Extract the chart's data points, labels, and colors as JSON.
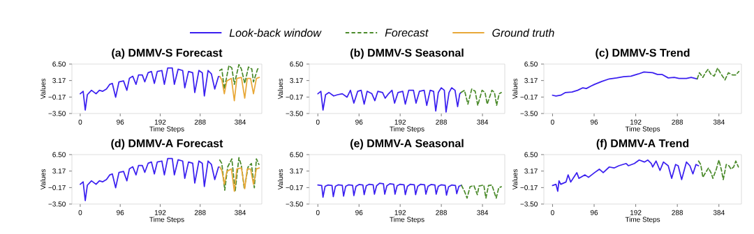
{
  "chart_data": [
    {
      "type": "line",
      "title": "(a) DMMV-S Forecast",
      "xlabel": "Time Steps",
      "ylabel": "Values",
      "legend": "top",
      "xlim": [
        -20,
        436
      ],
      "ylim": [
        -3.5,
        6.5
      ],
      "xticks": [
        0,
        96,
        192,
        288,
        384
      ],
      "yticks": [
        {
          "value": -3.5,
          "label": "−3.50"
        },
        {
          "value": -0.17,
          "label": "−0.17"
        },
        {
          "value": 3.17,
          "label": "3.17"
        },
        {
          "value": 6.5,
          "label": "6.50"
        }
      ],
      "series": [
        {
          "name": "Look-back window",
          "color": "#3a1ff0",
          "line_style": "solid",
          "x": [
            0,
            7,
            12,
            17,
            27,
            38,
            46,
            54,
            63,
            71,
            77,
            85,
            93,
            104,
            112,
            118,
            126,
            134,
            140,
            149,
            155,
            163,
            171,
            178,
            185,
            196,
            202,
            210,
            221,
            226,
            235,
            246,
            251,
            260,
            270,
            275,
            285,
            293,
            298,
            307,
            315,
            323,
            332,
            335
          ],
          "values": [
            0.5,
            1.0,
            -2.8,
            0.3,
            1.2,
            0.5,
            1.2,
            1.0,
            1.45,
            2.4,
            2.6,
            -0.2,
            2.9,
            3.1,
            1.2,
            3.6,
            4.05,
            2.4,
            4.3,
            4.3,
            2.9,
            4.75,
            5.0,
            2.6,
            5.0,
            5.2,
            2.4,
            5.7,
            5.7,
            2.4,
            5.45,
            5.2,
            1.7,
            5.0,
            4.75,
            0.75,
            5.2,
            4.75,
            0.05,
            5.2,
            4.5,
            1.45,
            4.0,
            4.0
          ]
        },
        {
          "name": "Forecast",
          "color": "#4a8a2a",
          "line_style": "dashed",
          "x": [
            335,
            340,
            346,
            357,
            364,
            370,
            381,
            387,
            395,
            404,
            412,
            416,
            426,
            430
          ],
          "values": [
            5.2,
            5.5,
            1.45,
            6.2,
            5.7,
            2.4,
            6.4,
            5.5,
            2.6,
            5.9,
            5.5,
            2.9,
            5.5,
            5.7
          ]
        },
        {
          "name": "Ground truth",
          "color": "#e8a838",
          "line_style": "solid",
          "x": [
            335,
            340,
            346,
            352,
            363,
            370,
            376,
            387,
            395,
            401,
            409,
            416,
            423,
            430
          ],
          "values": [
            4.0,
            3.3,
            0.5,
            3.1,
            3.6,
            -0.9,
            3.6,
            3.8,
            -0.4,
            3.6,
            3.6,
            0.5,
            3.6,
            3.8
          ]
        }
      ]
    },
    {
      "type": "line",
      "title": "(b) DMMV-S Seasonal",
      "xlabel": "Time Steps",
      "ylabel": "Values",
      "xlim": [
        -20,
        436
      ],
      "ylim": [
        -3.5,
        6.5
      ],
      "xticks": [
        0,
        96,
        192,
        288,
        384
      ],
      "yticks": [
        {
          "value": -3.5,
          "label": "−3.50"
        },
        {
          "value": -0.17,
          "label": "−0.17"
        },
        {
          "value": 3.17,
          "label": "3.17"
        },
        {
          "value": 6.5,
          "label": "6.50"
        }
      ],
      "series": [
        {
          "color": "#3a1ff0",
          "line_style": "solid",
          "x": [
            0,
            7,
            12,
            18,
            26,
            37,
            46,
            57,
            68,
            76,
            84,
            93,
            101,
            108,
            115,
            126,
            133,
            140,
            151,
            157,
            165,
            173,
            179,
            187,
            198,
            204,
            212,
            223,
            229,
            237,
            248,
            254,
            262,
            270,
            275,
            281,
            288,
            295,
            299,
            306,
            312,
            320,
            326,
            331,
            334
          ],
          "values": [
            0.5,
            1.0,
            -2.8,
            0.3,
            0.75,
            0.05,
            0.3,
            0.5,
            -0.2,
            1.2,
            -1.4,
            1.0,
            1.2,
            -1.6,
            1.0,
            0.5,
            -0.9,
            1.0,
            0.75,
            -0.4,
            0.5,
            1.2,
            -1.4,
            0.75,
            1.0,
            -1.6,
            1.2,
            1.2,
            -1.4,
            1.0,
            1.2,
            -1.85,
            1.2,
            1.0,
            -3.0,
            0.75,
            1.7,
            1.2,
            -3.2,
            0.75,
            1.7,
            1.2,
            -2.1,
            0.5,
            0.75
          ]
        },
        {
          "color": "#4a8a2a",
          "line_style": "dashed",
          "x": [
            334,
            342,
            350,
            359,
            367,
            373,
            383,
            390,
            395,
            406,
            412,
            417,
            423,
            428
          ],
          "values": [
            0.75,
            1.2,
            -1.6,
            1.45,
            1.0,
            -1.85,
            1.2,
            0.75,
            -1.6,
            1.2,
            0.75,
            -1.85,
            0.5,
            0.75
          ]
        }
      ]
    },
    {
      "type": "line",
      "title": "(c) DMMV-S Trend",
      "xlabel": "Time Steps",
      "ylabel": "Values",
      "xlim": [
        -20,
        436
      ],
      "ylim": [
        -3.5,
        6.5
      ],
      "xticks": [
        0,
        96,
        192,
        288,
        384
      ],
      "yticks": [
        {
          "value": -3.5,
          "label": "−3.50"
        },
        {
          "value": -0.17,
          "label": "−0.17"
        },
        {
          "value": 3.17,
          "label": "3.17"
        },
        {
          "value": 6.5,
          "label": "6.50"
        }
      ],
      "series": [
        {
          "color": "#3a1ff0",
          "line_style": "solid",
          "x": [
            0,
            8,
            19,
            30,
            45,
            58,
            70,
            78,
            89,
            97,
            114,
            131,
            148,
            164,
            181,
            198,
            211,
            231,
            242,
            253,
            267,
            281,
            292,
            309,
            320,
            334
          ],
          "values": [
            0.2,
            0.05,
            0.2,
            0.75,
            0.85,
            1.2,
            1.7,
            1.55,
            2.05,
            2.4,
            3.0,
            3.5,
            3.7,
            3.95,
            4.05,
            4.5,
            4.9,
            4.75,
            4.4,
            4.4,
            3.7,
            3.8,
            3.6,
            3.6,
            3.8,
            3.5
          ]
        },
        {
          "color": "#4a8a2a",
          "line_style": "dashed",
          "x": [
            334,
            339,
            347,
            353,
            359,
            365,
            373,
            381,
            387,
            398,
            406,
            415,
            423,
            430
          ],
          "values": [
            3.5,
            4.75,
            3.8,
            4.75,
            5.45,
            4.5,
            4.05,
            5.7,
            4.75,
            3.3,
            4.75,
            4.3,
            4.3,
            5.0
          ]
        }
      ]
    },
    {
      "type": "line",
      "title": "(d) DMMV-A Forecast",
      "xlabel": "Time Steps",
      "ylabel": "Values",
      "xlim": [
        -20,
        436
      ],
      "ylim": [
        -3.5,
        6.5
      ],
      "xticks": [
        0,
        96,
        192,
        288,
        384
      ],
      "yticks": [
        {
          "value": -3.5,
          "label": "−3.50"
        },
        {
          "value": -0.17,
          "label": "−0.17"
        },
        {
          "value": 3.17,
          "label": "3.17"
        },
        {
          "value": 6.5,
          "label": "6.50"
        }
      ],
      "series": [
        {
          "color": "#3a1ff0",
          "line_style": "solid",
          "x": [
            0,
            7,
            12,
            17,
            27,
            38,
            46,
            54,
            63,
            71,
            77,
            85,
            93,
            104,
            112,
            118,
            126,
            134,
            140,
            149,
            155,
            163,
            171,
            178,
            185,
            196,
            202,
            210,
            221,
            226,
            235,
            246,
            251,
            260,
            270,
            275,
            285,
            293,
            298,
            307,
            315,
            323,
            332,
            335
          ],
          "values": [
            0.5,
            1.0,
            -2.8,
            0.3,
            1.2,
            0.5,
            1.2,
            1.0,
            1.45,
            2.4,
            2.6,
            -0.2,
            2.9,
            3.1,
            1.2,
            3.6,
            4.05,
            2.4,
            4.3,
            4.3,
            2.9,
            4.75,
            5.0,
            2.6,
            5.0,
            5.2,
            2.4,
            5.7,
            5.7,
            2.4,
            5.45,
            5.2,
            1.7,
            5.0,
            4.75,
            0.75,
            5.2,
            4.75,
            0.05,
            5.2,
            4.5,
            1.45,
            4.0,
            4.0
          ]
        },
        {
          "color": "#4a8a2a",
          "line_style": "dashed",
          "x": [
            335,
            340,
            347,
            354,
            364,
            372,
            381,
            387,
            394,
            403,
            411,
            418,
            423,
            429
          ],
          "values": [
            5.4,
            4.7,
            -0.7,
            4.0,
            5.65,
            -0.9,
            5.9,
            4.25,
            -0.45,
            4.0,
            4.7,
            -0.2,
            5.65,
            4.5
          ]
        },
        {
          "color": "#e8a838",
          "line_style": "solid",
          "x": [
            335,
            340,
            346,
            352,
            363,
            370,
            376,
            387,
            395,
            401,
            409,
            416,
            423,
            430
          ],
          "values": [
            4.0,
            3.3,
            0.5,
            3.1,
            3.6,
            -0.9,
            3.6,
            3.8,
            -0.4,
            3.6,
            3.6,
            0.5,
            3.6,
            3.8
          ]
        }
      ]
    },
    {
      "type": "line",
      "title": "(e) DMMV-A Seasonal",
      "xlabel": "Time Steps",
      "ylabel": "Values",
      "xlim": [
        -20,
        436
      ],
      "ylim": [
        -3.5,
        6.5
      ],
      "xticks": [
        0,
        96,
        192,
        288,
        384
      ],
      "yticks": [
        {
          "value": -3.5,
          "label": "−3.50"
        },
        {
          "value": -0.17,
          "label": "−0.17"
        },
        {
          "value": 3.17,
          "label": "3.17"
        },
        {
          "value": 6.5,
          "label": "6.50"
        }
      ],
      "series": [
        {
          "color": "#3a1ff0",
          "line_style": "solid",
          "x": [
            0,
            9,
            12,
            17,
            24,
            33,
            36,
            41,
            48,
            57,
            60,
            65,
            72,
            81,
            84,
            89,
            96,
            105,
            108,
            113,
            120,
            129,
            132,
            137,
            144,
            153,
            156,
            161,
            168,
            177,
            180,
            185,
            192,
            201,
            204,
            209,
            216,
            225,
            228,
            233,
            240,
            249,
            252,
            257,
            264,
            273,
            276,
            281,
            288,
            297,
            300,
            305,
            312,
            321,
            324,
            329,
            335
          ],
          "values": [
            0.35,
            0.25,
            -2.1,
            0.1,
            0.35,
            0.25,
            -2.0,
            0.1,
            0.4,
            0.3,
            -1.9,
            0.1,
            0.4,
            0.3,
            -1.8,
            0.1,
            0.45,
            0.35,
            -1.6,
            0.2,
            0.5,
            0.4,
            -1.5,
            0.2,
            0.7,
            0.6,
            -1.5,
            0.2,
            0.6,
            0.5,
            -1.5,
            0.2,
            0.5,
            0.4,
            -1.6,
            0.1,
            0.5,
            0.4,
            -1.6,
            0.1,
            0.5,
            0.4,
            -1.5,
            0.1,
            0.45,
            0.35,
            -1.5,
            0.1,
            0.4,
            0.3,
            -1.7,
            0.0,
            0.35,
            0.25,
            -1.4,
            0.1,
            0.3
          ]
        },
        {
          "color": "#4a8a2a",
          "line_style": "dashed",
          "x": [
            335,
            342,
            348,
            355,
            364,
            372,
            376,
            387,
            392,
            398,
            406,
            416,
            422,
            428
          ],
          "values": [
            0.3,
            -0.9,
            -2.3,
            0.0,
            0.25,
            -1.6,
            0.15,
            0.35,
            -2.3,
            0.25,
            0.35,
            -2.3,
            -0.2,
            0.0
          ]
        }
      ]
    },
    {
      "type": "line",
      "title": "(f) DMMV-A Trend",
      "xlabel": "Time Steps",
      "ylabel": "Values",
      "xlim": [
        -20,
        436
      ],
      "ylim": [
        -3.5,
        6.5
      ],
      "xticks": [
        0,
        96,
        192,
        288,
        384
      ],
      "yticks": [
        {
          "value": -3.5,
          "label": "−3.50"
        },
        {
          "value": -0.17,
          "label": "−0.17"
        },
        {
          "value": 3.17,
          "label": "3.17"
        },
        {
          "value": 6.5,
          "label": "6.50"
        }
      ],
      "series": [
        {
          "color": "#3a1ff0",
          "line_style": "solid",
          "x": [
            0,
            8,
            12,
            15,
            19,
            31,
            36,
            42,
            56,
            61,
            75,
            83,
            97,
            108,
            117,
            131,
            142,
            153,
            170,
            175,
            189,
            200,
            212,
            220,
            228,
            231,
            239,
            248,
            256,
            267,
            275,
            284,
            290,
            298,
            309,
            317,
            324,
            331,
            337
          ],
          "values": [
            0.25,
            0.5,
            -0.9,
            1.2,
            0.5,
            0.95,
            2.4,
            0.95,
            2.85,
            1.7,
            2.4,
            1.9,
            2.85,
            3.55,
            2.85,
            4.0,
            3.8,
            4.25,
            4.7,
            4.25,
            4.7,
            5.4,
            5.0,
            5.4,
            4.7,
            4.0,
            5.2,
            3.3,
            5.0,
            4.25,
            1.7,
            4.5,
            4.25,
            1.45,
            5.0,
            4.25,
            2.6,
            4.5,
            4.25
          ]
        },
        {
          "color": "#4a8a2a",
          "line_style": "dashed",
          "x": [
            337,
            342,
            347,
            353,
            360,
            367,
            370,
            378,
            384,
            390,
            394,
            401,
            407,
            412,
            418,
            423,
            429
          ],
          "values": [
            5.2,
            4.5,
            1.9,
            2.85,
            3.8,
            2.6,
            1.7,
            3.55,
            5.4,
            3.3,
            1.45,
            4.5,
            4.25,
            3.55,
            4.0,
            5.2,
            4.0
          ]
        }
      ]
    }
  ]
}
